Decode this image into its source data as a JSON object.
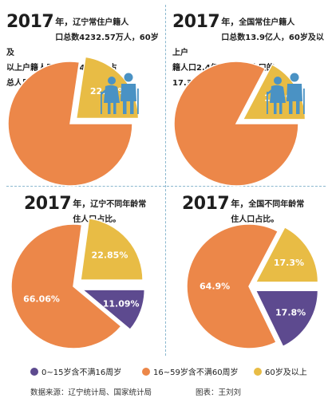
{
  "colors": {
    "young": "#5d4a8f",
    "mid": "#ec8749",
    "old": "#e8bc45",
    "figures": "#4a92c4"
  },
  "panels": [
    {
      "year": "2017",
      "year_suffix": "年，",
      "lines": [
        "辽宁常住户籍人",
        "口总数4232.57万人，60岁及",
        "以上户籍人口958.74万人，占",
        "总人口的22.65%。"
      ]
    },
    {
      "year": "2017",
      "year_suffix": "年，",
      "lines": [
        "全国常住户籍人",
        "口总数13.9亿人，60岁及以上户",
        "籍人口2.4亿人，占总人口的",
        "17.3%。"
      ]
    },
    {
      "year": "2017",
      "year_suffix": "年，",
      "lines": [
        "辽宁不同年龄常",
        "住人口占比。"
      ]
    },
    {
      "year": "2017",
      "year_suffix": "年，",
      "lines": [
        "全国不同年龄常",
        "住人口占比。"
      ]
    }
  ],
  "chart_data": [
    {
      "type": "pie",
      "slices": [
        {
          "key": "other",
          "value": 77.35,
          "label": ""
        },
        {
          "key": "old",
          "value": 22.65,
          "label": "22.65%"
        }
      ]
    },
    {
      "type": "pie",
      "slices": [
        {
          "key": "other",
          "value": 82.7,
          "label": ""
        },
        {
          "key": "old",
          "value": 17.3,
          "label": "17.3%"
        }
      ]
    },
    {
      "type": "pie",
      "slices": [
        {
          "key": "young",
          "value": 11.09,
          "label": "11.09%"
        },
        {
          "key": "mid",
          "value": 66.06,
          "label": "66.06%"
        },
        {
          "key": "old",
          "value": 22.85,
          "label": "22.85%"
        }
      ]
    },
    {
      "type": "pie",
      "slices": [
        {
          "key": "young",
          "value": 17.8,
          "label": "17.8%"
        },
        {
          "key": "mid",
          "value": 64.9,
          "label": "64.9%"
        },
        {
          "key": "old",
          "value": 17.3,
          "label": "17.3%"
        }
      ]
    }
  ],
  "legend": {
    "items": [
      {
        "key": "young",
        "label": "0~15岁含不满16周岁"
      },
      {
        "key": "mid",
        "label": "16~59岁含不满60周岁"
      },
      {
        "key": "old",
        "label": "60岁及以上"
      }
    ]
  },
  "source": {
    "data": "数据来源：辽宁统计局、国家统计局",
    "chart": "图表：王刘刘"
  }
}
